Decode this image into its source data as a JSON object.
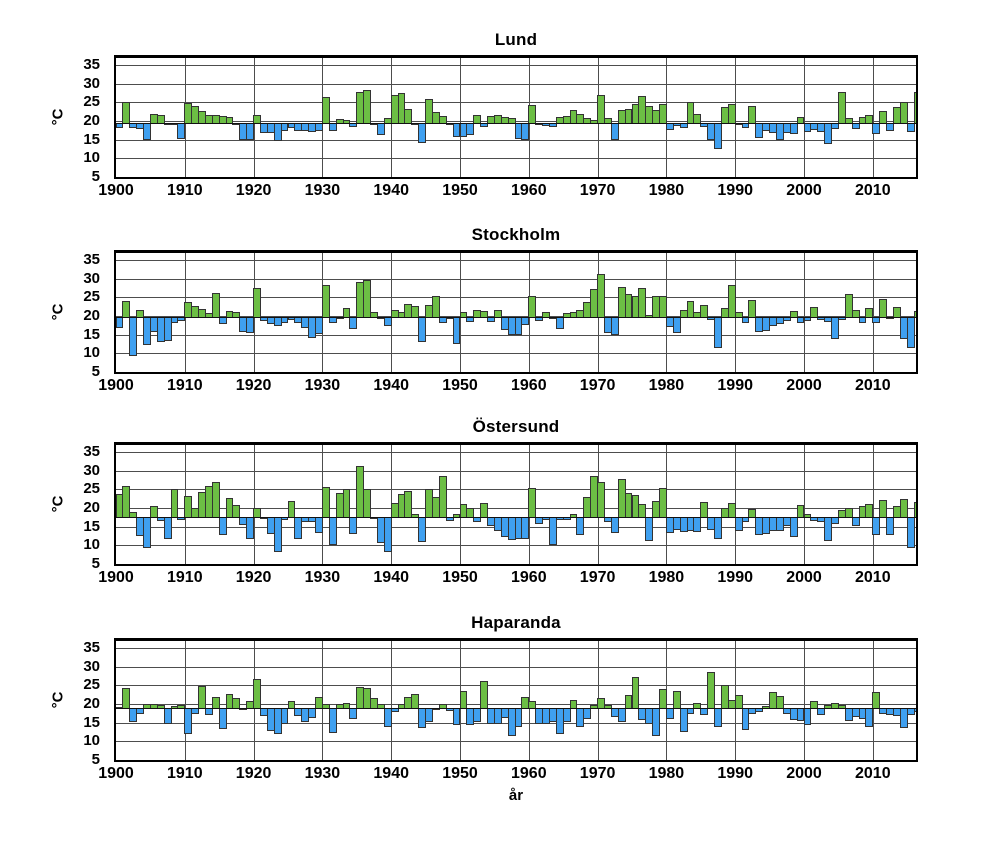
{
  "figure": {
    "background": "#ffffff",
    "xlabel": "år",
    "ylabel": "°C"
  },
  "chart_data": {
    "type": "bar",
    "grid": true,
    "legend": "none",
    "ylim": [
      5,
      36.9
    ],
    "y_ticks": [
      35,
      30,
      25,
      20,
      15,
      10,
      5
    ],
    "x_ticks": [
      1900,
      1910,
      1920,
      1930,
      1940,
      1950,
      1960,
      1970,
      1980,
      1990,
      2000,
      2010
    ],
    "colors": {
      "above_baseline": "#6cbe44",
      "below_baseline": "#3fa0f0",
      "bar_edge": "#333333",
      "grid": "#4d4d4d",
      "frame": "#000000"
    },
    "years": [
      1900,
      1901,
      1902,
      1903,
      1904,
      1905,
      1906,
      1907,
      1908,
      1909,
      1910,
      1911,
      1912,
      1913,
      1914,
      1915,
      1916,
      1917,
      1918,
      1919,
      1920,
      1921,
      1922,
      1923,
      1924,
      1925,
      1926,
      1927,
      1928,
      1929,
      1930,
      1931,
      1932,
      1933,
      1934,
      1935,
      1936,
      1937,
      1938,
      1939,
      1940,
      1941,
      1942,
      1943,
      1944,
      1945,
      1946,
      1947,
      1948,
      1949,
      1950,
      1951,
      1952,
      1953,
      1954,
      1955,
      1956,
      1957,
      1958,
      1959,
      1960,
      1961,
      1962,
      1963,
      1964,
      1965,
      1966,
      1967,
      1968,
      1969,
      1970,
      1971,
      1972,
      1973,
      1974,
      1975,
      1976,
      1977,
      1978,
      1979,
      1980,
      1981,
      1982,
      1983,
      1984,
      1985,
      1986,
      1987,
      1988,
      1989,
      1990,
      1991,
      1992,
      1993,
      1994,
      1995,
      1996,
      1997,
      1998,
      1999,
      2000,
      2001,
      2002,
      2003,
      2004,
      2005,
      2006,
      2007,
      2008,
      2009,
      2010,
      2011,
      2012,
      2013,
      2014,
      2015,
      2016
    ],
    "charts": [
      {
        "title": "Lund",
        "ylabel": "°C",
        "baseline": 19.5,
        "values": [
          18.3,
          25.0,
          18.3,
          18.0,
          15.2,
          21.9,
          21.5,
          19.3,
          19.4,
          15.5,
          24.8,
          24.0,
          22.7,
          21.7,
          21.5,
          21.3,
          21.0,
          19.6,
          15.3,
          15.1,
          21.6,
          17.0,
          17.0,
          14.9,
          17.5,
          18.3,
          17.5,
          17.7,
          17.3,
          17.5,
          26.5,
          17.5,
          20.5,
          20.3,
          18.7,
          27.8,
          28.4,
          19.2,
          16.6,
          20.9,
          27.1,
          27.4,
          23.2,
          19.2,
          14.3,
          25.9,
          22.4,
          21.4,
          19.4,
          15.9,
          16.1,
          16.4,
          21.6,
          18.6,
          21.3,
          21.7,
          21.2,
          20.8,
          15.5,
          15.3,
          24.3,
          19.3,
          18.9,
          18.6,
          21.1,
          21.4,
          22.9,
          21.8,
          20.9,
          20.3,
          26.9,
          20.9,
          15.1,
          23.0,
          23.2,
          24.7,
          26.8,
          24.0,
          22.9,
          24.6,
          17.8,
          18.9,
          18.5,
          25.0,
          21.8,
          18.6,
          15.3,
          12.8,
          23.9,
          24.5,
          19.1,
          18.3,
          24.0,
          15.8,
          17.5,
          17.0,
          15.1,
          17.1,
          16.8,
          21.0,
          17.4,
          17.9,
          17.4,
          14.2,
          18.0,
          27.9,
          20.7,
          18.1,
          21.2,
          21.6,
          16.7,
          22.7,
          17.7,
          23.9,
          25.0,
          17.2,
          27.8
        ]
      },
      {
        "title": "Stockholm",
        "ylabel": "°C",
        "baseline": 19.8,
        "values": [
          17.1,
          24.1,
          9.5,
          21.6,
          12.4,
          16.0,
          13.3,
          13.6,
          18.5,
          18.9,
          23.8,
          22.8,
          22.0,
          20.7,
          26.1,
          18.0,
          21.3,
          21.0,
          16.0,
          15.7,
          27.4,
          19.0,
          18.0,
          17.7,
          18.5,
          19.3,
          18.3,
          17.0,
          14.4,
          15.5,
          28.3,
          18.5,
          19.7,
          22.3,
          16.8,
          29.1,
          29.8,
          21.0,
          19.6,
          17.5,
          21.5,
          21.0,
          23.2,
          22.7,
          13.2,
          23.0,
          25.5,
          18.5,
          19.5,
          12.7,
          21.0,
          18.7,
          21.5,
          21.3,
          18.6,
          21.7,
          16.5,
          15.1,
          15.1,
          17.9,
          25.5,
          19.0,
          21.0,
          19.4,
          16.8,
          20.7,
          21.2,
          21.7,
          23.8,
          27.2,
          31.3,
          15.8,
          15.2,
          27.8,
          25.8,
          25.5,
          27.4,
          20.2,
          25.3,
          25.5,
          17.4,
          15.8,
          21.6,
          24.0,
          21.0,
          22.9,
          19.3,
          11.6,
          22.2,
          28.3,
          21.0,
          18.3,
          24.4,
          16.0,
          16.2,
          17.5,
          18.0,
          19.0,
          21.3,
          18.4,
          19.0,
          22.5,
          19.3,
          18.6,
          14.2,
          19.3,
          25.8,
          21.5,
          18.3,
          22.2,
          18.5,
          24.7,
          19.5,
          22.4,
          14.0,
          11.6,
          21.4
        ]
      },
      {
        "title": "Östersund",
        "ylabel": "°C",
        "baseline": 17.6,
        "values": [
          23.9,
          25.9,
          19.0,
          12.9,
          9.7,
          20.5,
          16.8,
          12.0,
          25.0,
          17.0,
          23.3,
          20.0,
          24.3,
          26.0,
          27.0,
          13.0,
          22.7,
          20.7,
          15.8,
          12.0,
          20.0,
          17.3,
          13.2,
          8.5,
          17.0,
          22.0,
          12.0,
          16.5,
          16.5,
          13.5,
          25.7,
          10.5,
          24.0,
          25.0,
          13.3,
          31.3,
          25.0,
          17.3,
          11.0,
          8.5,
          21.3,
          23.8,
          24.7,
          18.5,
          11.3,
          25.0,
          23.0,
          28.7,
          16.8,
          18.3,
          21.0,
          20.0,
          16.5,
          21.3,
          15.5,
          14.0,
          12.5,
          11.8,
          12.0,
          12.0,
          25.5,
          16.0,
          17.0,
          10.5,
          17.0,
          17.2,
          18.5,
          13.0,
          23.0,
          28.7,
          27.0,
          16.5,
          13.5,
          27.8,
          24.0,
          23.5,
          21.0,
          11.5,
          22.0,
          25.3,
          13.5,
          14.5,
          13.8,
          14.0,
          13.8,
          21.5,
          14.5,
          12.0,
          20.0,
          21.3,
          14.0,
          16.5,
          19.8,
          13.0,
          13.2,
          14.0,
          14.0,
          15.5,
          12.5,
          20.7,
          18.5,
          16.8,
          16.5,
          11.5,
          16.0,
          19.5,
          20.0,
          15.5,
          20.5,
          21.0,
          13.0,
          22.3,
          13.0,
          20.5,
          22.5,
          9.5,
          21.7
        ]
      },
      {
        "title": "Haparanda",
        "ylabel": "°C",
        "xlabel": "år",
        "baseline": 18.9,
        "values": [
          19.3,
          24.3,
          15.3,
          17.5,
          19.9,
          20.0,
          19.8,
          15.0,
          19.5,
          19.8,
          12.3,
          17.5,
          24.8,
          17.3,
          21.8,
          13.5,
          22.8,
          21.5,
          19.0,
          20.8,
          26.8,
          17.0,
          13.0,
          12.3,
          15.0,
          20.8,
          17.0,
          15.5,
          16.5,
          21.8,
          19.9,
          12.5,
          20.0,
          20.3,
          16.3,
          24.5,
          24.2,
          21.5,
          19.9,
          14.2,
          18.0,
          20.0,
          21.8,
          22.8,
          13.7,
          15.5,
          19.0,
          20.0,
          18.3,
          14.5,
          23.5,
          14.7,
          15.5,
          26.3,
          15.0,
          14.8,
          16.5,
          11.8,
          14.0,
          22.0,
          20.8,
          15.0,
          15.0,
          15.3,
          12.2,
          15.5,
          21.0,
          14.0,
          16.3,
          19.8,
          21.5,
          19.7,
          16.8,
          15.5,
          22.5,
          27.3,
          16.0,
          15.0,
          11.8,
          24.0,
          16.1,
          23.5,
          12.8,
          17.5,
          20.3,
          17.2,
          28.6,
          14.0,
          25.2,
          21.2,
          22.4,
          13.2,
          17.5,
          18.0,
          19.4,
          23.3,
          22.2,
          17.7,
          16.0,
          15.8,
          14.7,
          20.8,
          17.4,
          19.7,
          20.2,
          19.7,
          15.8,
          16.9,
          16.2,
          14.1,
          23.3,
          17.5,
          17.4,
          17.1,
          13.8,
          17.4,
          18.0
        ]
      }
    ]
  }
}
